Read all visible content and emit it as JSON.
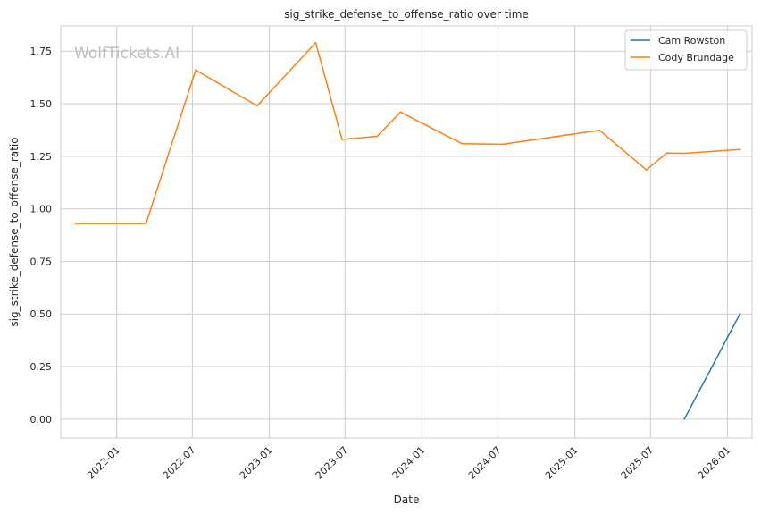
{
  "chart_data": {
    "type": "line",
    "title": "sig_strike_defense_to_offense_ratio over time",
    "xlabel": "Date",
    "ylabel": "sig_strike_defense_to_offense_ratio",
    "watermark": "WolfTickets.AI",
    "x_tick_labels": [
      "2022-01",
      "2022-07",
      "2023-01",
      "2023-07",
      "2024-01",
      "2024-07",
      "2025-01",
      "2025-07",
      "2026-01"
    ],
    "y_tick_labels": [
      "0.00",
      "0.25",
      "0.50",
      "0.75",
      "1.00",
      "1.25",
      "1.50",
      "1.75"
    ],
    "ylim": [
      -0.09,
      1.87
    ],
    "xlim": [
      "2021-08-20",
      "2026-03-01"
    ],
    "grid": true,
    "legend_position": "top-right",
    "series": [
      {
        "name": "Cam Rowston",
        "color": "#1f77b4",
        "points": [
          {
            "x": "2025-09-20",
            "y": 0.0
          },
          {
            "x": "2026-01-31",
            "y": 0.5
          }
        ]
      },
      {
        "name": "Cody Brundage",
        "color": "#ff7f0e",
        "points": [
          {
            "x": "2021-09-25",
            "y": 0.93
          },
          {
            "x": "2022-03-12",
            "y": 0.93
          },
          {
            "x": "2022-07-09",
            "y": 1.66
          },
          {
            "x": "2022-12-03",
            "y": 1.49
          },
          {
            "x": "2023-04-22",
            "y": 1.79
          },
          {
            "x": "2023-06-24",
            "y": 1.33
          },
          {
            "x": "2023-09-16",
            "y": 1.345
          },
          {
            "x": "2023-11-11",
            "y": 1.46
          },
          {
            "x": "2024-04-06",
            "y": 1.31
          },
          {
            "x": "2024-07-13",
            "y": 1.307
          },
          {
            "x": "2025-03-01",
            "y": 1.374
          },
          {
            "x": "2025-06-21",
            "y": 1.185
          },
          {
            "x": "2025-08-09",
            "y": 1.265
          },
          {
            "x": "2025-09-20",
            "y": 1.264
          },
          {
            "x": "2026-01-31",
            "y": 1.282
          }
        ]
      }
    ]
  }
}
